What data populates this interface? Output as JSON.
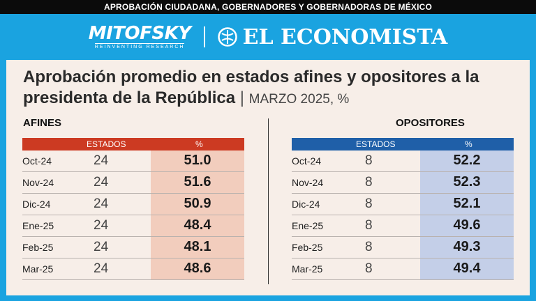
{
  "header": {
    "topbar_text": "APROBACIÓN CIUDADANA, GOBERNADORES Y GOBERNADORAS DE MÉXICO"
  },
  "brands": {
    "mitofsky": "MITOFSKY",
    "mitofsky_sub": "REINVENTING RESEARCH",
    "economista": "EL ECONOMISTA"
  },
  "title": {
    "main": "Aprobación promedio en estados afines y opositores a la presidenta de la República",
    "separator": "|",
    "subtitle": "MARZO 2025, %"
  },
  "colors": {
    "background": "#1aa3e0",
    "afines_header": "#cc3a22",
    "afines_highlight": "#f2cdbd",
    "opositores_header": "#1f5fa8",
    "opositores_highlight": "#c4cfe8"
  },
  "chart_data": {
    "type": "table",
    "tables": [
      {
        "label": "AFINES",
        "columns": [
          "",
          "ESTADOS",
          "%"
        ],
        "rows": [
          {
            "month": "Oct-24",
            "estados": "24",
            "pct": "51.0"
          },
          {
            "month": "Nov-24",
            "estados": "24",
            "pct": "51.6"
          },
          {
            "month": "Dic-24",
            "estados": "24",
            "pct": "50.9"
          },
          {
            "month": "Ene-25",
            "estados": "24",
            "pct": "48.4"
          },
          {
            "month": "Feb-25",
            "estados": "24",
            "pct": "48.1"
          },
          {
            "month": "Mar-25",
            "estados": "24",
            "pct": "48.6"
          }
        ]
      },
      {
        "label": "OPOSITORES",
        "columns": [
          "",
          "ESTADOS",
          "%"
        ],
        "rows": [
          {
            "month": "Oct-24",
            "estados": "8",
            "pct": "52.2"
          },
          {
            "month": "Nov-24",
            "estados": "8",
            "pct": "52.3"
          },
          {
            "month": "Dic-24",
            "estados": "8",
            "pct": "52.1"
          },
          {
            "month": "Ene-25",
            "estados": "8",
            "pct": "49.6"
          },
          {
            "month": "Feb-25",
            "estados": "8",
            "pct": "49.3"
          },
          {
            "month": "Mar-25",
            "estados": "8",
            "pct": "49.4"
          }
        ]
      }
    ]
  }
}
